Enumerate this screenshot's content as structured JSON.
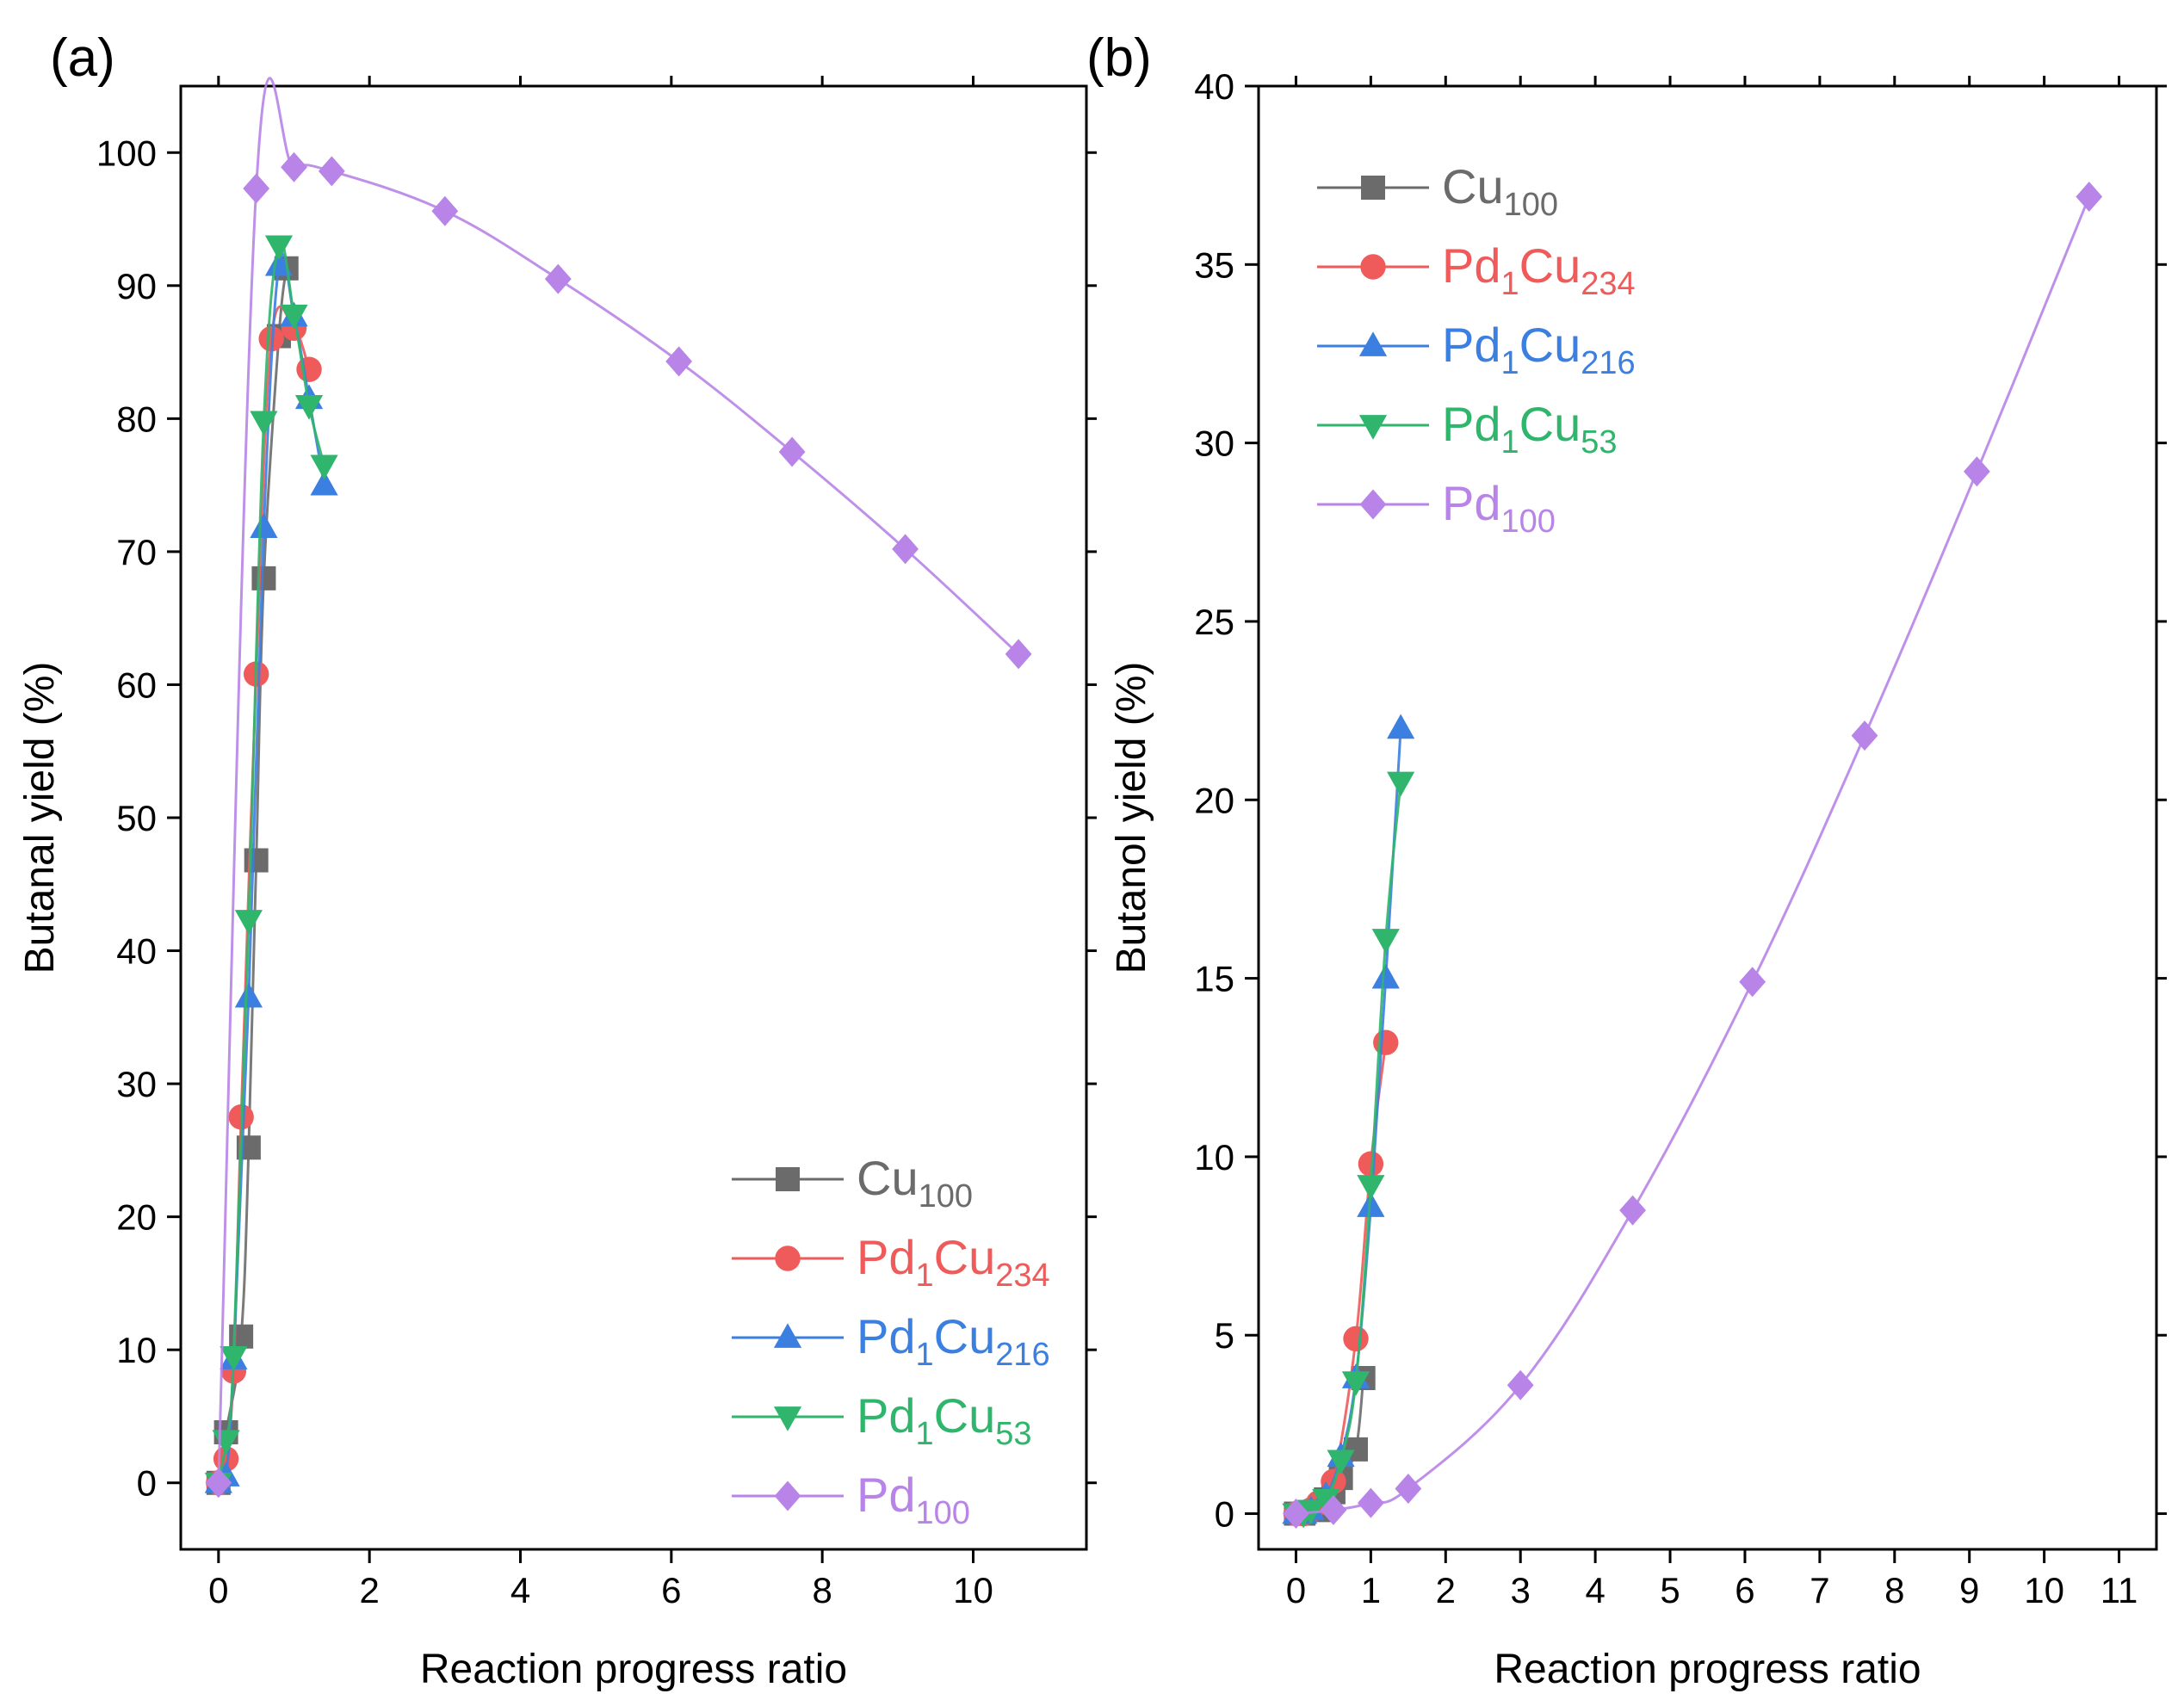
{
  "chart_data": [
    {
      "id": "a",
      "type": "line",
      "panel_label": "(a)",
      "xlabel": "Reaction progress ratio",
      "ylabel": "Butanal yield (%)",
      "xlim": [
        -0.5,
        11.5
      ],
      "ylim": [
        -5,
        105
      ],
      "xticks": [
        0,
        2,
        4,
        6,
        8,
        10
      ],
      "yticks": [
        0,
        10,
        20,
        30,
        40,
        50,
        60,
        70,
        80,
        90,
        100
      ],
      "grid": false,
      "legend_position": "bottom-right",
      "series": [
        {
          "name": "Cu",
          "sub": "100",
          "color": "#6b6b6b",
          "marker": "square",
          "x": [
            0,
            0.1,
            0.3,
            0.4,
            0.5,
            0.6,
            0.8,
            0.9
          ],
          "y": [
            0,
            3.8,
            11.0,
            25.2,
            46.8,
            68.0,
            86.2,
            91.3
          ]
        },
        {
          "name": "Pd",
          "sub1": "1",
          "name2": "Cu",
          "sub": "234",
          "color": "#ef5a5a",
          "marker": "circle",
          "x": [
            0,
            0.1,
            0.2,
            0.3,
            0.5,
            0.7,
            1.0,
            1.2
          ],
          "y": [
            0,
            1.8,
            8.4,
            27.5,
            60.8,
            86.0,
            86.8,
            83.7
          ]
        },
        {
          "name": "Pd",
          "sub1": "1",
          "name2": "Cu",
          "sub": "216",
          "color": "#3b7fe0",
          "marker": "triangle-up",
          "x": [
            0,
            0.1,
            0.2,
            0.4,
            0.6,
            0.8,
            1.0,
            1.2,
            1.4
          ],
          "y": [
            0,
            0.5,
            9.3,
            36.5,
            71.8,
            91.5,
            87.7,
            81.5,
            75.0
          ]
        },
        {
          "name": "Pd",
          "sub1": "1",
          "name2": "Cu",
          "sub": "53",
          "color": "#2fb56c",
          "marker": "triangle-down",
          "x": [
            0,
            0.1,
            0.2,
            0.4,
            0.6,
            0.8,
            1.0,
            1.2,
            1.4
          ],
          "y": [
            0,
            3.2,
            9.5,
            42.3,
            79.8,
            93.0,
            87.8,
            81.0,
            76.5
          ]
        },
        {
          "name": "Pd",
          "sub": "100",
          "color": "#b884e8",
          "marker": "diamond",
          "x": [
            0,
            0.5,
            1.0,
            1.5,
            3.0,
            4.5,
            6.1,
            7.6,
            9.1,
            10.6
          ],
          "y": [
            0,
            97.3,
            98.9,
            98.6,
            95.6,
            90.5,
            84.3,
            77.5,
            70.2,
            62.3
          ]
        }
      ]
    },
    {
      "id": "b",
      "type": "line",
      "panel_label": "(b)",
      "xlabel": "Reaction progress ratio",
      "ylabel": "Butanol yield (%)",
      "xlim": [
        -0.5,
        11.5
      ],
      "ylim": [
        -1,
        40
      ],
      "xticks": [
        0,
        1,
        2,
        3,
        4,
        5,
        6,
        7,
        8,
        9,
        10,
        11
      ],
      "yticks": [
        0,
        5,
        10,
        15,
        20,
        25,
        30,
        35,
        40
      ],
      "grid": false,
      "legend_position": "top-left",
      "series": [
        {
          "name": "Cu",
          "sub": "100",
          "color": "#6b6b6b",
          "marker": "square",
          "x": [
            0,
            0.1,
            0.3,
            0.4,
            0.5,
            0.6,
            0.8,
            0.9
          ],
          "y": [
            0,
            0,
            0.1,
            0.4,
            0.6,
            1.0,
            1.8,
            3.8
          ]
        },
        {
          "name": "Pd",
          "sub1": "1",
          "name2": "Cu",
          "sub": "234",
          "color": "#ef5a5a",
          "marker": "circle",
          "x": [
            0,
            0.1,
            0.2,
            0.3,
            0.5,
            0.8,
            1.0,
            1.2
          ],
          "y": [
            0,
            0,
            0.1,
            0.3,
            0.9,
            4.9,
            9.8,
            13.2
          ]
        },
        {
          "name": "Pd",
          "sub1": "1",
          "name2": "Cu",
          "sub": "216",
          "color": "#3b7fe0",
          "marker": "triangle-up",
          "x": [
            0,
            0.1,
            0.2,
            0.4,
            0.6,
            0.8,
            1.0,
            1.2,
            1.4
          ],
          "y": [
            0,
            0,
            0.1,
            0.5,
            1.6,
            3.8,
            8.6,
            15.0,
            22.0
          ]
        },
        {
          "name": "Pd",
          "sub1": "1",
          "name2": "Cu",
          "sub": "53",
          "color": "#2fb56c",
          "marker": "triangle-down",
          "x": [
            0,
            0.1,
            0.2,
            0.4,
            0.6,
            0.8,
            1.0,
            1.2,
            1.4
          ],
          "y": [
            0,
            0,
            0.1,
            0.4,
            1.5,
            3.7,
            9.2,
            16.1,
            20.5
          ]
        },
        {
          "name": "Pd",
          "sub": "100",
          "color": "#b884e8",
          "marker": "diamond",
          "x": [
            0,
            0.5,
            1.0,
            1.5,
            3.0,
            4.5,
            6.1,
            7.6,
            9.1,
            10.6
          ],
          "y": [
            0,
            0.1,
            0.3,
            0.7,
            3.6,
            8.5,
            14.9,
            21.8,
            29.2,
            36.9
          ]
        }
      ]
    }
  ]
}
